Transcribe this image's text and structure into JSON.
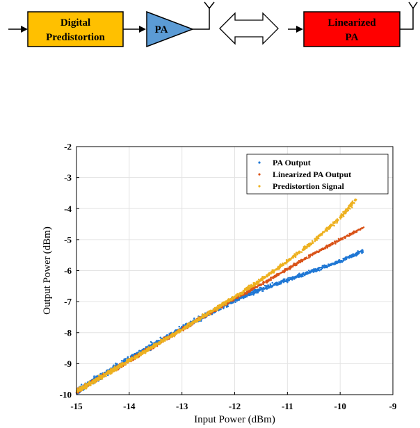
{
  "diagram": {
    "blocks": {
      "dpd_line1": "Digital",
      "dpd_line2": "Predistortion",
      "pa": "PA",
      "lin_line1": "Linearized",
      "lin_line2": "PA"
    },
    "colors": {
      "dpd_fill": "#FFC000",
      "pa_fill": "#5B9BD5",
      "lin_fill": "#FF0000",
      "stroke": "#000000"
    }
  },
  "chart_data": {
    "type": "scatter",
    "title": "",
    "xlabel": "Input Power (dBm)",
    "ylabel": "Output Power (dBm)",
    "xlim": [
      -15,
      -9
    ],
    "ylim": [
      -10,
      -2
    ],
    "xticks": [
      "-15",
      "-14",
      "-13",
      "-12",
      "-11",
      "-10",
      "-9"
    ],
    "yticks": [
      "-10",
      "-9",
      "-8",
      "-7",
      "-6",
      "-5",
      "-4",
      "-3",
      "-2"
    ],
    "grid": true,
    "legend_position": "top-right",
    "series": [
      {
        "name": "PA Output",
        "color": "#1F77D4",
        "curve_x": [
          -15,
          -14,
          -13,
          -12,
          -11.5,
          -11,
          -10.5,
          -10,
          -9.55
        ],
        "curve_y": [
          -9.9,
          -8.85,
          -7.85,
          -6.95,
          -6.6,
          -6.3,
          -6.0,
          -5.7,
          -5.35
        ]
      },
      {
        "name": "Linearized PA Output",
        "color": "#D95319",
        "curve_x": [
          -15,
          -14,
          -13,
          -12,
          -11.5,
          -11,
          -10.5,
          -10,
          -9.55
        ],
        "curve_y": [
          -9.9,
          -8.9,
          -7.9,
          -6.9,
          -6.45,
          -5.95,
          -5.45,
          -5.0,
          -4.6
        ]
      },
      {
        "name": "Predistortion Signal",
        "color": "#EDB120",
        "curve_x": [
          -15,
          -14,
          -13,
          -12,
          -11.5,
          -11,
          -10.5,
          -10,
          -9.7
        ],
        "curve_y": [
          -9.9,
          -8.9,
          -7.9,
          -6.85,
          -6.3,
          -5.7,
          -5.05,
          -4.3,
          -3.7
        ]
      }
    ]
  }
}
